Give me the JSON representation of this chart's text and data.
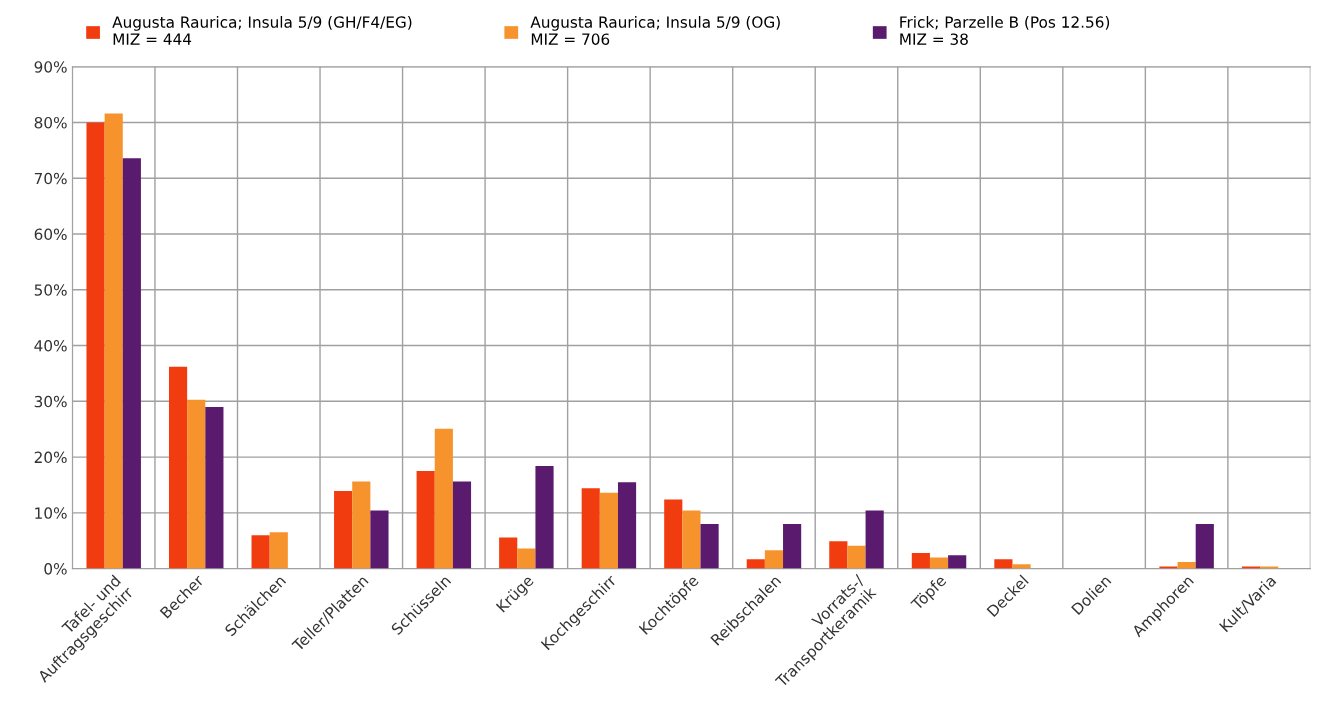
{
  "chart_data": {
    "type": "bar",
    "categories": [
      "Tafel- und\nAuftragsgeschirr",
      "Becher",
      "Schälchen",
      "Teller/Platten",
      "Schüsseln",
      "Krüge",
      "Kochgeschirr",
      "Kochtöpfe",
      "Reibschalen",
      "Vorrats-/\nTransportkeramik",
      "Töpfe",
      "Deckel",
      "Dolien",
      "Amphoren",
      "Kult/Varia"
    ],
    "series": [
      {
        "name": "Augusta Raurica; Insula 5/9 (GH/F4/EG)\nMIZ = 444",
        "color": "#f03c0f",
        "values": [
          80.0,
          36.2,
          6.0,
          13.9,
          17.5,
          5.6,
          14.4,
          12.4,
          1.7,
          4.9,
          2.8,
          1.7,
          0,
          0.4,
          0.4
        ]
      },
      {
        "name": "Augusta Raurica; Insula 5/9 (OG)\nMIZ = 706",
        "color": "#f7932d",
        "values": [
          81.6,
          30.3,
          6.5,
          15.6,
          25.1,
          3.6,
          13.6,
          10.4,
          3.3,
          4.1,
          2.0,
          0.8,
          0,
          1.2,
          0.4
        ]
      },
      {
        "name": "Frick; Parzelle B (Pos 12.56)\nMIZ = 38",
        "color": "#5a1a6e",
        "values": [
          73.6,
          29.0,
          0,
          10.4,
          15.6,
          18.4,
          15.5,
          8.0,
          8.0,
          10.4,
          2.4,
          0,
          0,
          8.0,
          0
        ]
      }
    ],
    "ylim": [
      0,
      90
    ],
    "yticks": [
      {
        "value": 0,
        "label": "0%"
      },
      {
        "value": 10,
        "label": "10%"
      },
      {
        "value": 20,
        "label": "20%"
      },
      {
        "value": 30,
        "label": "30%"
      },
      {
        "value": 40,
        "label": "40%"
      },
      {
        "value": 50,
        "label": "50%"
      },
      {
        "value": 60,
        "label": "60%"
      },
      {
        "value": 70,
        "label": "70%"
      },
      {
        "value": 80,
        "label": "80%"
      },
      {
        "value": 90,
        "label": "90%"
      }
    ],
    "grid": true,
    "legend": "top"
  }
}
